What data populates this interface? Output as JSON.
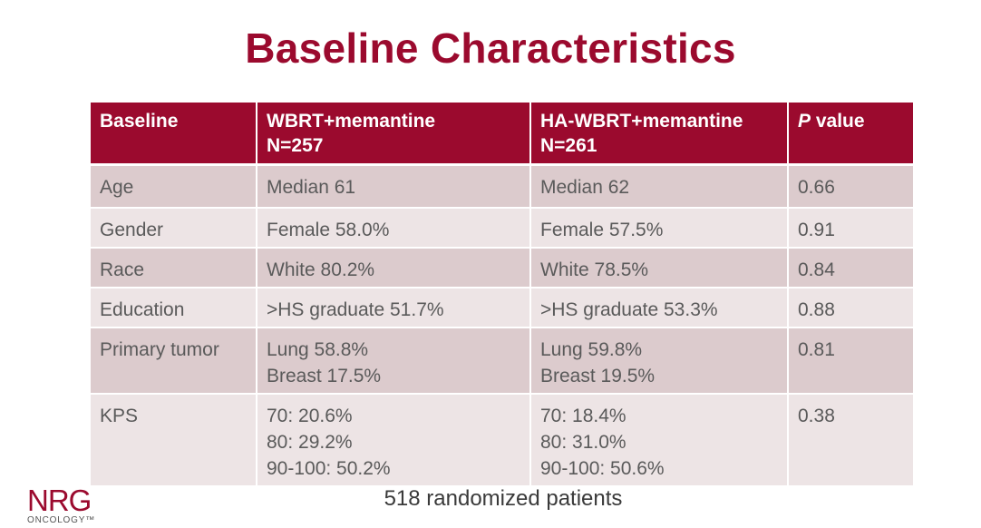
{
  "title": "Baseline Characteristics",
  "table": {
    "headers": {
      "col1": "Baseline",
      "col2_line1": "WBRT+memantine",
      "col2_line2": "N=257",
      "col3_line1": "HA-WBRT+memantine",
      "col3_line2": "N=261",
      "col4_italic": "P",
      "col4_rest": " value"
    },
    "rows": [
      {
        "label": "Age",
        "arm1": [
          "Median 61"
        ],
        "arm2": [
          "Median 62"
        ],
        "p": "0.66"
      },
      {
        "label": "Gender",
        "arm1": [
          "Female 58.0%"
        ],
        "arm2": [
          "Female 57.5%"
        ],
        "p": "0.91"
      },
      {
        "label": "Race",
        "arm1": [
          "White 80.2%"
        ],
        "arm2": [
          "White 78.5%"
        ],
        "p": "0.84"
      },
      {
        "label": "Education",
        "arm1": [
          ">HS graduate 51.7%"
        ],
        "arm2": [
          ">HS graduate 53.3%"
        ],
        "p": "0.88"
      },
      {
        "label": "Primary tumor",
        "arm1": [
          "Lung 58.8%",
          "Breast 17.5%"
        ],
        "arm2": [
          "Lung 59.8%",
          "Breast 19.5%"
        ],
        "p": "0.81"
      },
      {
        "label": "KPS",
        "arm1": [
          "70: 20.6%",
          "80: 29.2%",
          "90-100: 50.2%"
        ],
        "arm2": [
          "70: 18.4%",
          "80: 31.0%",
          "90-100: 50.6%"
        ],
        "p": "0.38"
      }
    ]
  },
  "footer_note": "518 randomized patients",
  "logo": {
    "mark": "NRG",
    "sub": "ONCOLOGY™",
    "color": "#9b0a2e"
  },
  "colors": {
    "accent": "#9b0a2e",
    "row_dark": "#dccbcd",
    "row_light": "#ede4e5"
  }
}
